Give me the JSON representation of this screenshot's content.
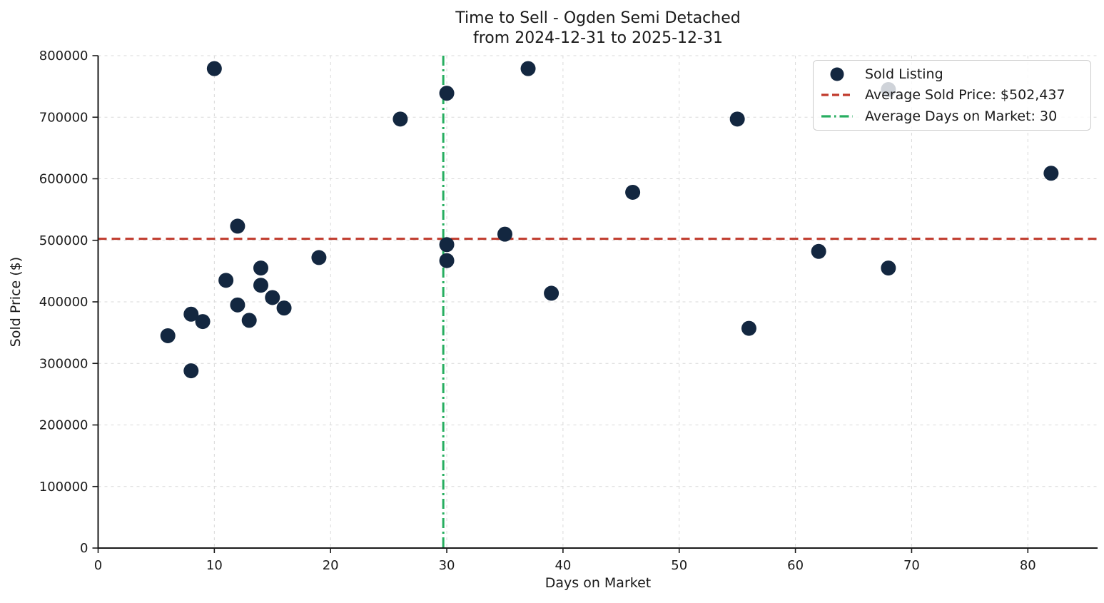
{
  "chart_data": {
    "type": "scatter",
    "title": "Time to Sell - Ogden Semi Detached",
    "subtitle": "from 2024-12-31 to 2025-12-31",
    "xlabel": "Days on Market",
    "ylabel": "Sold Price ($)",
    "xlim": [
      0,
      86
    ],
    "ylim": [
      0,
      800000
    ],
    "x_ticks": [
      0,
      10,
      20,
      30,
      40,
      50,
      60,
      70,
      80
    ],
    "y_ticks": [
      0,
      100000,
      200000,
      300000,
      400000,
      500000,
      600000,
      700000,
      800000
    ],
    "grid": true,
    "legend_position": "upper right",
    "colors": {
      "point": "#132740",
      "avg_price_line": "#c0392b",
      "avg_days_line": "#27ae60",
      "gridline": "#d9d9d9",
      "spine": "#1a1a1a",
      "text": "#1a1a1a"
    },
    "series": [
      {
        "name": "Sold Listing",
        "kind": "scatter",
        "points": [
          [
            6,
            345000
          ],
          [
            8,
            288000
          ],
          [
            8,
            380000
          ],
          [
            9,
            368000
          ],
          [
            10,
            779000
          ],
          [
            11,
            435000
          ],
          [
            12,
            395000
          ],
          [
            12,
            523000
          ],
          [
            13,
            370000
          ],
          [
            14,
            427000
          ],
          [
            14,
            455000
          ],
          [
            15,
            407000
          ],
          [
            16,
            390000
          ],
          [
            19,
            472000
          ],
          [
            26,
            697000
          ],
          [
            30,
            467000
          ],
          [
            30,
            493000
          ],
          [
            30,
            739000
          ],
          [
            35,
            510000
          ],
          [
            37,
            779000
          ],
          [
            39,
            414000
          ],
          [
            46,
            578000
          ],
          [
            55,
            697000
          ],
          [
            56,
            357000
          ],
          [
            62,
            482000
          ],
          [
            68,
            455000
          ],
          [
            68,
            745000
          ],
          [
            82,
            609000
          ]
        ]
      },
      {
        "name": "Average Sold Price: $502,437",
        "kind": "hline",
        "value": 502437,
        "style": "dashed"
      },
      {
        "name": "Average Days on Market: 30",
        "kind": "vline",
        "value": 29.7,
        "style": "dashdot"
      }
    ]
  }
}
